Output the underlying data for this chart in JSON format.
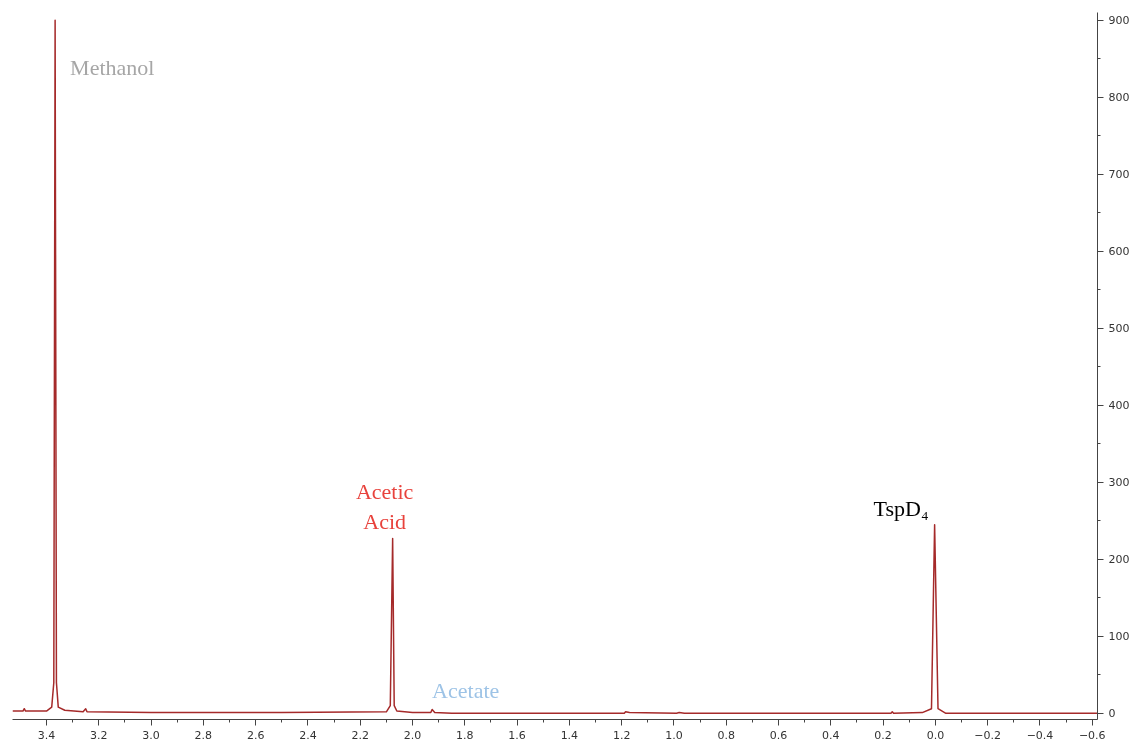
{
  "chart_data": {
    "type": "line",
    "x": [
      3.53,
      3.49,
      3.485,
      3.48,
      3.4,
      3.38,
      3.372,
      3.367,
      3.362,
      3.355,
      3.33,
      3.26,
      3.25,
      3.245,
      3.0,
      2.5,
      2.1,
      2.085,
      2.076,
      2.07,
      2.06,
      2.0,
      1.93,
      1.925,
      1.915,
      1.85,
      1.5,
      1.19,
      1.185,
      1.17,
      0.99,
      0.98,
      0.96,
      0.5,
      0.17,
      0.165,
      0.16,
      0.05,
      0.015,
      0.003,
      -0.01,
      -0.04,
      -0.62
    ],
    "series": [
      {
        "color": "#a52a2a",
        "values": [
          3,
          3,
          6,
          3,
          3,
          8,
          40,
          900,
          40,
          8,
          4,
          2,
          6,
          2,
          1,
          1,
          2,
          10,
          227,
          10,
          3,
          1,
          1,
          5,
          1,
          0,
          0,
          0,
          2,
          1,
          0,
          1,
          0,
          0,
          0,
          2,
          0,
          1,
          6,
          245,
          6,
          0,
          0
        ]
      }
    ],
    "xlim": [
      3.53,
      -0.62
    ],
    "xticks": [
      3.4,
      3.2,
      {
        "value": 3.0,
        "label": "3.0"
      },
      2.8,
      2.6,
      2.4,
      2.2,
      {
        "value": 2.0,
        "label": "2.0"
      },
      1.8,
      1.6,
      1.4,
      1.2,
      {
        "value": 1.0,
        "label": "1.0"
      },
      0.8,
      0.6,
      0.4,
      0.2,
      {
        "value": 0.0,
        "label": "0.0"
      },
      -0.2,
      -0.4,
      -0.6
    ],
    "ylim": [
      -8,
      910
    ],
    "yticks": [
      0,
      100,
      200,
      300,
      400,
      500,
      600,
      700,
      800,
      900
    ],
    "annotations": [
      {
        "text": "Methanol",
        "x": 3.367,
        "y": 900
      },
      {
        "text": "Acetic\nAcid",
        "x": 2.076,
        "y": 227
      },
      {
        "text": "Acetate",
        "x": 1.925,
        "y": 5
      },
      {
        "text": "TspD₄",
        "x": 0.003,
        "y": 245
      }
    ],
    "grid": false,
    "marker": "none",
    "line_style": "solid"
  }
}
